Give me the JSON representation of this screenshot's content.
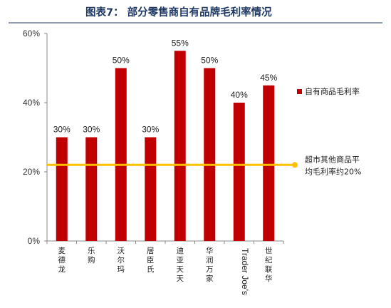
{
  "chart_data": {
    "type": "bar",
    "title": "图表7： 部分零售商自有品牌毛利率情况",
    "categories": [
      "麦德龙",
      "乐购",
      "沃尔玛",
      "居臣氏",
      "迪亚天天",
      "华润万家",
      "Trader Joe's",
      "世纪联华"
    ],
    "values": [
      30,
      30,
      50,
      30,
      55,
      50,
      40,
      45
    ],
    "value_labels": [
      "30%",
      "30%",
      "50%",
      "30%",
      "55%",
      "50%",
      "40%",
      "45%"
    ],
    "series": [
      {
        "name": "自有商品毛利率",
        "values": [
          30,
          30,
          50,
          30,
          55,
          50,
          40,
          45
        ]
      }
    ],
    "reference_line": {
      "value": 22,
      "label": [
        "超市其他商品平",
        "均毛利率约20%"
      ]
    },
    "yticks": [
      "0%",
      "20%",
      "40%",
      "60%"
    ],
    "ylim": [
      0,
      60
    ],
    "grid": false,
    "legend_position": "right",
    "colors": {
      "bar": "#c00000",
      "line": "#ffc000",
      "title": "#1f3864"
    }
  }
}
